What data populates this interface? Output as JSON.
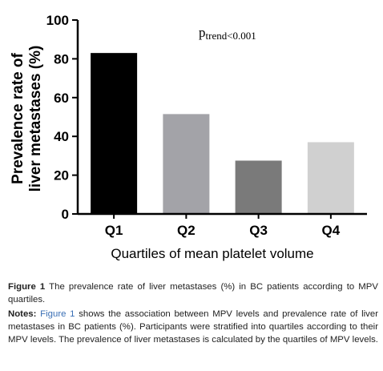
{
  "chart_data": {
    "type": "bar",
    "categories": [
      "Q1",
      "Q2",
      "Q3",
      "Q4"
    ],
    "values": [
      83,
      51.5,
      27.5,
      37
    ],
    "colors": [
      "#000000",
      "#a3a3a8",
      "#7a7a7a",
      "#d0d0d0"
    ],
    "ylabel_line1": "Prevalence rate of",
    "ylabel_line2": "liver metastases (%)",
    "xlabel": "Quartiles of mean platelet volume",
    "ylim": [
      0,
      100
    ],
    "yticks": [
      0,
      20,
      40,
      60,
      80,
      100
    ],
    "annotation_main": "p",
    "annotation_sub": "trend",
    "annotation_rest": "<0.001",
    "grid": false
  },
  "caption": {
    "fig_label": "Figure 1",
    "fig_text": "The prevalence rate of liver metastases (%) in BC patients according to MPV quartiles.",
    "notes_label": "Notes:",
    "notes_ref": "Figure 1",
    "notes_text": "shows the association between MPV levels and prevalence rate of liver metastases in BC patients (%). Participants were stratified into quartiles according to their MPV levels. The prevalence of liver metastases is calculated by the quartiles of MPV levels."
  }
}
